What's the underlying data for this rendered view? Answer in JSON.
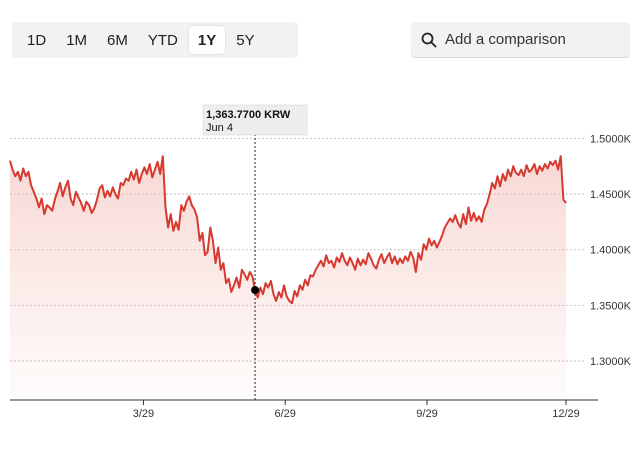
{
  "range_tabs": [
    {
      "label": "1D",
      "active": false
    },
    {
      "label": "1M",
      "active": false
    },
    {
      "label": "6M",
      "active": false
    },
    {
      "label": "YTD",
      "active": false
    },
    {
      "label": "1Y",
      "active": true
    },
    {
      "label": "5Y",
      "active": false
    }
  ],
  "comparison": {
    "label": "Add a comparison",
    "icon": "search-icon"
  },
  "tooltip": {
    "value": "1,363.7700 KRW",
    "date": "Jun 4"
  },
  "colors": {
    "line": "#d63a2f",
    "fill_top": "#f2b9b2",
    "marker": "#000000"
  },
  "chart_data": {
    "type": "area",
    "title": "",
    "xlabel": "",
    "ylabel": "",
    "x_ticks": [
      "3/29",
      "6/29",
      "9/29",
      "12/29"
    ],
    "y_ticks": [
      "1.5000K",
      "1.4500K",
      "1.4000K",
      "1.3500K",
      "1.3000K"
    ],
    "y_tick_values": [
      1500,
      1450,
      1400,
      1350,
      1300
    ],
    "ylim": [
      1265,
      1530
    ],
    "grid": "horizontal dotted",
    "highlight": {
      "date": "Jun 4",
      "value": 1363.77
    },
    "series": [
      {
        "values": [
          1480,
          1472,
          1466,
          1470,
          1462,
          1473,
          1466,
          1470,
          1458,
          1452,
          1446,
          1438,
          1446,
          1432,
          1440,
          1438,
          1435,
          1445,
          1452,
          1460,
          1448,
          1456,
          1462,
          1446,
          1440,
          1452,
          1447,
          1442,
          1435,
          1443,
          1440,
          1433,
          1437,
          1445,
          1455,
          1458,
          1447,
          1453,
          1448,
          1456,
          1450,
          1446,
          1460,
          1458,
          1464,
          1462,
          1470,
          1463,
          1472,
          1460,
          1468,
          1474,
          1468,
          1477,
          1465,
          1472,
          1479,
          1468,
          1484,
          1438,
          1420,
          1432,
          1417,
          1425,
          1418,
          1440,
          1435,
          1443,
          1448,
          1440,
          1436,
          1429,
          1408,
          1415,
          1395,
          1398,
          1420,
          1408,
          1388,
          1402,
          1382,
          1388,
          1370,
          1374,
          1362,
          1368,
          1375,
          1366,
          1382,
          1378,
          1373,
          1380,
          1376,
          1363.77,
          1357,
          1366,
          1360,
          1370,
          1366,
          1372,
          1360,
          1354,
          1362,
          1357,
          1368,
          1358,
          1354,
          1352,
          1363,
          1358,
          1368,
          1364,
          1373,
          1368,
          1377,
          1376,
          1382,
          1386,
          1390,
          1385,
          1395,
          1388,
          1390,
          1384,
          1393,
          1389,
          1397,
          1390,
          1386,
          1393,
          1388,
          1382,
          1392,
          1386,
          1391,
          1387,
          1397,
          1392,
          1386,
          1383,
          1391,
          1396,
          1388,
          1393,
          1397,
          1388,
          1394,
          1387,
          1392,
          1388,
          1394,
          1390,
          1398,
          1393,
          1380,
          1397,
          1391,
          1405,
          1400,
          1410,
          1404,
          1408,
          1402,
          1407,
          1413,
          1420,
          1424,
          1428,
          1425,
          1431,
          1424,
          1420,
          1432,
          1423,
          1438,
          1426,
          1433,
          1426,
          1430,
          1425,
          1436,
          1441,
          1450,
          1460,
          1455,
          1466,
          1457,
          1468,
          1462,
          1472,
          1466,
          1475,
          1469,
          1467,
          1472,
          1466,
          1476,
          1470,
          1472,
          1477,
          1468,
          1475,
          1471,
          1477,
          1473,
          1479,
          1476,
          1480,
          1472,
          1484,
          1445,
          1442
        ]
      }
    ]
  }
}
